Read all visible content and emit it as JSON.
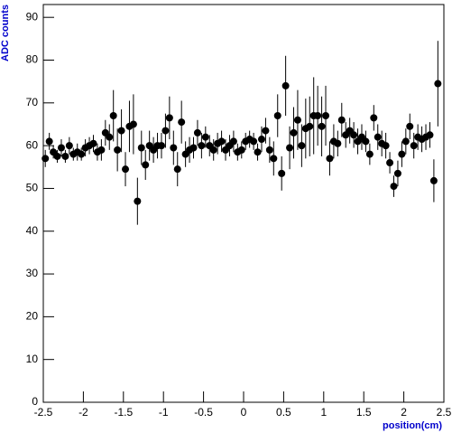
{
  "chart_data": {
    "type": "scatter",
    "xlabel": "position(cm)",
    "ylabel": "ADC counts",
    "x": [
      -2.475,
      -2.425,
      -2.375,
      -2.325,
      -2.275,
      -2.225,
      -2.175,
      -2.125,
      -2.075,
      -2.025,
      -1.975,
      -1.925,
      -1.875,
      -1.825,
      -1.775,
      -1.725,
      -1.675,
      -1.625,
      -1.575,
      -1.525,
      -1.475,
      -1.425,
      -1.375,
      -1.325,
      -1.275,
      -1.225,
      -1.175,
      -1.125,
      -1.075,
      -1.025,
      -0.975,
      -0.925,
      -0.875,
      -0.825,
      -0.775,
      -0.725,
      -0.675,
      -0.625,
      -0.575,
      -0.525,
      -0.475,
      -0.425,
      -0.375,
      -0.325,
      -0.275,
      -0.225,
      -0.175,
      -0.125,
      -0.075,
      -0.025,
      0.025,
      0.075,
      0.125,
      0.175,
      0.225,
      0.275,
      0.325,
      0.375,
      0.425,
      0.475,
      0.525,
      0.575,
      0.625,
      0.675,
      0.725,
      0.775,
      0.825,
      0.875,
      0.925,
      0.975,
      1.025,
      1.075,
      1.125,
      1.175,
      1.225,
      1.275,
      1.325,
      1.375,
      1.425,
      1.475,
      1.525,
      1.575,
      1.625,
      1.675,
      1.725,
      1.775,
      1.825,
      1.875,
      1.925,
      1.975,
      2.025,
      2.075,
      2.125,
      2.175,
      2.225,
      2.275,
      2.325,
      2.375,
      2.425
    ],
    "values": [
      57,
      61,
      58.5,
      57.5,
      59.5,
      57.5,
      60,
      58,
      58.5,
      58,
      59.5,
      60,
      60.5,
      58.5,
      59,
      63,
      62,
      67,
      59,
      63.5,
      54.5,
      64.5,
      65,
      47,
      59.5,
      55.5,
      60,
      59,
      60,
      60,
      63.5,
      66.5,
      59.5,
      54.5,
      65.5,
      58,
      59,
      59.5,
      63,
      60,
      62,
      60,
      59,
      60.5,
      61,
      59,
      60,
      61,
      58.5,
      59,
      61,
      61.5,
      61,
      58.5,
      61.5,
      63.5,
      59,
      57,
      67,
      53.5,
      74,
      59.5,
      63,
      66,
      60,
      64,
      64.5,
      67,
      67,
      64.5,
      67,
      57,
      61,
      60.5,
      66,
      62.5,
      63.5,
      62.5,
      61,
      62,
      61,
      58,
      66.5,
      62,
      60.5,
      60,
      56,
      50.5,
      53.5,
      58,
      61,
      64.5,
      60,
      62,
      61.5,
      62,
      62.5,
      51.8,
      74.5
    ],
    "errors": [
      2,
      2,
      1.5,
      1.5,
      2,
      1.5,
      2,
      1.5,
      2,
      1.5,
      2,
      2,
      2,
      2,
      2.5,
      3,
      3,
      6,
      5,
      5,
      4,
      6,
      7,
      5.5,
      4,
      3.5,
      3.5,
      3,
      3,
      3,
      4,
      5,
      4,
      4,
      5,
      3,
      3,
      2.5,
      3,
      3,
      2.5,
      2.5,
      2.5,
      2.5,
      2.5,
      2.5,
      2.5,
      2.5,
      2,
      2,
      2,
      2,
      2,
      2,
      3,
      3,
      3,
      4,
      5,
      4,
      7,
      5,
      6,
      7,
      5,
      7,
      7,
      9,
      7,
      7,
      7,
      4,
      4,
      3,
      4,
      3,
      3,
      3,
      3,
      3,
      2.5,
      2.5,
      3,
      3,
      3,
      3,
      2.5,
      2.5,
      3,
      3,
      3,
      3,
      3,
      3,
      3,
      3,
      3,
      5,
      10
    ],
    "color": "#000000",
    "axis_label_color": "#0000cc",
    "xlim": [
      -2.5,
      2.5
    ],
    "xticks": [
      -2.5,
      -2,
      -1.5,
      -1,
      -0.5,
      0,
      0.5,
      1,
      1.5,
      2,
      2.5
    ],
    "ylim": [
      0,
      93
    ],
    "yticks": [
      0,
      10,
      20,
      30,
      40,
      50,
      60,
      70,
      80,
      90
    ]
  }
}
